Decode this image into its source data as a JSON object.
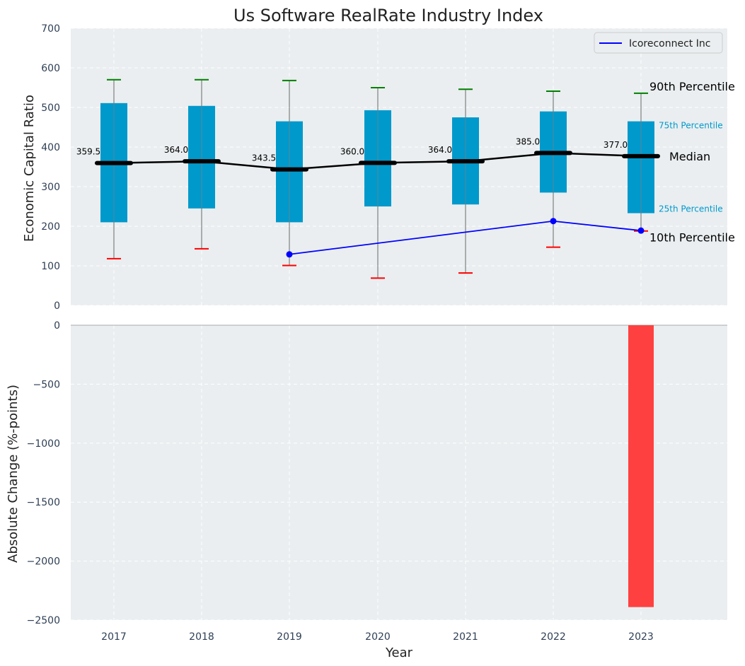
{
  "chart_data": [
    {
      "type": "box",
      "title": "Us Software RealRate Industry Index",
      "ylabel": "Economic Capital Ratio",
      "ylim": [
        0,
        700
      ],
      "yticks": [
        0,
        100,
        200,
        300,
        400,
        500,
        600,
        700
      ],
      "categories": [
        "2017",
        "2018",
        "2019",
        "2020",
        "2021",
        "2022",
        "2023"
      ],
      "grid": true,
      "legend": {
        "position": "top-right",
        "entries": [
          "Icoreconnect Inc"
        ]
      },
      "series": [
        {
          "name": "90th Percentile",
          "values": [
            570,
            570,
            568,
            550,
            546,
            541,
            536
          ]
        },
        {
          "name": "75th Percentile",
          "values": [
            511,
            504,
            465,
            493,
            475,
            490,
            465
          ]
        },
        {
          "name": "Median",
          "values": [
            359.5,
            364.0,
            343.5,
            360.0,
            364.0,
            385.0,
            377.0
          ]
        },
        {
          "name": "25th Percentile",
          "values": [
            210,
            245,
            210,
            250,
            255,
            285,
            233
          ]
        },
        {
          "name": "10th Percentile",
          "values": [
            118,
            143,
            101,
            69,
            82,
            147,
            188
          ]
        },
        {
          "name": "Icoreconnect Inc",
          "x": [
            "2019",
            "2022",
            "2023"
          ],
          "values": [
            129,
            213,
            189
          ]
        }
      ],
      "median_labels": [
        "359.5",
        "364.0",
        "343.5",
        "360.0",
        "364.0",
        "385.0",
        "377.0"
      ],
      "annotations": {
        "p90": "90th Percentile",
        "p75": "75th Percentile",
        "median": "Median",
        "p25": "25th Percentile",
        "p10": "10th Percentile"
      },
      "colors": {
        "box": "#0099cc",
        "median": "#000000",
        "whisker": "#808080",
        "cap_top": "#008000",
        "cap_bottom": "#ff0000",
        "company_line": "#0000ff",
        "background": "#eaeef0"
      }
    },
    {
      "type": "bar",
      "ylabel": "Absolute Change (%-points)",
      "xlabel": "Year",
      "ylim": [
        -2500,
        0
      ],
      "yticks": [
        0,
        -500,
        -1000,
        -1500,
        -2000,
        -2500
      ],
      "ytick_labels": [
        "0",
        "−500",
        "−1000",
        "−1500",
        "−2000",
        "−2500"
      ],
      "categories": [
        "2017",
        "2018",
        "2019",
        "2020",
        "2021",
        "2022",
        "2023"
      ],
      "values": [
        null,
        null,
        null,
        null,
        null,
        null,
        -2390
      ],
      "bar_color": "#ff4040",
      "grid": true
    }
  ]
}
